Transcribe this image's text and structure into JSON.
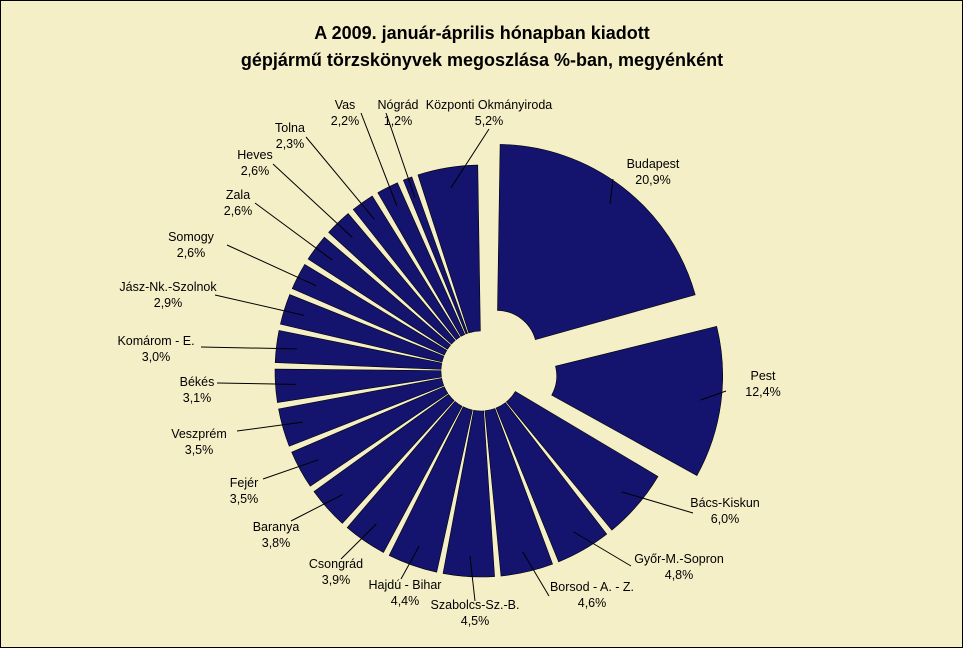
{
  "chart_data": {
    "type": "pie",
    "title": "A  2009. január-április hónapban kiadott",
    "subtitle": "gépjármű törzskönyvek megoszlása %-ban, megyénként",
    "slices": [
      {
        "label": "Budapest",
        "value_text": "20,9%",
        "value": 20.9
      },
      {
        "label": "Pest",
        "value_text": "12,4%",
        "value": 12.4
      },
      {
        "label": "Bács-Kiskun",
        "value_text": "6,0%",
        "value": 6.0
      },
      {
        "label": "Győr-M.-Sopron",
        "value_text": "4,8%",
        "value": 4.8
      },
      {
        "label": "Borsod - A. - Z.",
        "value_text": "4,6%",
        "value": 4.6
      },
      {
        "label": "Szabolcs-Sz.-B.",
        "value_text": "4,5%",
        "value": 4.5
      },
      {
        "label": "Hajdú - Bihar",
        "value_text": "4,4%",
        "value": 4.4
      },
      {
        "label": "Csongrád",
        "value_text": "3,9%",
        "value": 3.9
      },
      {
        "label": "Baranya",
        "value_text": "3,8%",
        "value": 3.8
      },
      {
        "label": "Fejér",
        "value_text": "3,5%",
        "value": 3.5
      },
      {
        "label": "Veszprém",
        "value_text": "3,5%",
        "value": 3.5
      },
      {
        "label": "Békés",
        "value_text": "3,1%",
        "value": 3.1
      },
      {
        "label": "Komárom - E.",
        "value_text": "3,0%",
        "value": 3.0
      },
      {
        "label": "Jász-Nk.-Szolnok",
        "value_text": "2,9%",
        "value": 2.9
      },
      {
        "label": "Somogy",
        "value_text": "2,6%",
        "value": 2.6
      },
      {
        "label": "Zala",
        "value_text": "2,6%",
        "value": 2.6
      },
      {
        "label": "Heves",
        "value_text": "2,6%",
        "value": 2.6
      },
      {
        "label": "Tolna",
        "value_text": "2,3%",
        "value": 2.3
      },
      {
        "label": "Vas",
        "value_text": "2,2%",
        "value": 2.2
      },
      {
        "label": "Nógrád",
        "value_text": "1,2%",
        "value": 1.2
      },
      {
        "label": "Központi Okmányiroda",
        "value_text": "5,2%",
        "value": 5.2
      }
    ],
    "legend": "none",
    "colors": {
      "slice": "#14146e",
      "background": "#f5efc8"
    }
  }
}
